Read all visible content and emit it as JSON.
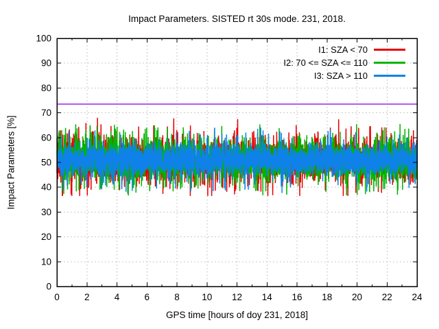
{
  "chart_data": {
    "type": "line",
    "title": "Impact Parameters. SISTED rt 30s mode. 231, 2018.",
    "xlabel": "GPS time [hours of doy 231, 2018]",
    "ylabel": "Impact Parameters [%]",
    "xlim": [
      0,
      24
    ],
    "ylim": [
      0,
      100
    ],
    "x_ticks": [
      0,
      2,
      4,
      6,
      8,
      10,
      12,
      14,
      16,
      18,
      20,
      22,
      24
    ],
    "x_minor_step": 1,
    "y_ticks": [
      0,
      10,
      20,
      30,
      40,
      50,
      60,
      70,
      80,
      90,
      100
    ],
    "grid": true,
    "grid_color": "#b9b9b9",
    "background_color": "#ffffff",
    "border_color": "#000000",
    "legend_position": "top-right-inside",
    "threshold_line": {
      "y": 73.5,
      "color": "#a020f0"
    },
    "series": [
      {
        "name": "I1: SZA < 70",
        "color": "#e60000",
        "signal_model": {
          "seed": 11,
          "mean": 51,
          "sigma": 4.6,
          "spike_probability": 0.025,
          "spike_min_offset": 9.5,
          "spike_max_offset": 17.5,
          "clip_min": 36.5,
          "clip_max": 69
        }
      },
      {
        "name": "I2: 70 <= SZA <= 110",
        "color": "#00b400",
        "signal_model": {
          "seed": 23,
          "mean": 51,
          "sigma": 4.4,
          "spike_probability": 0.022,
          "spike_min_offset": 9.0,
          "spike_max_offset": 14.5,
          "clip_min": 36.5,
          "clip_max": 66
        }
      },
      {
        "name": "I3: SZA > 110",
        "color": "#0e82e8",
        "signal_model": {
          "seed": 37,
          "mean": 51,
          "sigma": 3.3,
          "spike_probability": 0.02,
          "spike_min_offset": 8.5,
          "spike_max_offset": 13.5,
          "clip_min": 37.5,
          "clip_max": 64.5
        }
      }
    ],
    "sampling": {
      "n_points": 2880,
      "interval_label": "30s"
    }
  }
}
